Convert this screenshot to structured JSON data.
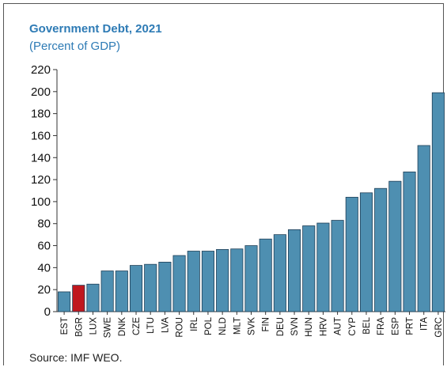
{
  "chart_data": {
    "type": "bar",
    "title": "Government Debt, 2021",
    "subtitle": "(Percent of GDP)",
    "source": "Source: IMF WEO.",
    "categories": [
      "EST",
      "BGR",
      "LUX",
      "SWE",
      "DNK",
      "CZE",
      "LTU",
      "LVA",
      "ROU",
      "IRL",
      "POL",
      "NLD",
      "MLT",
      "SVK",
      "FIN",
      "DEU",
      "SVN",
      "HUN",
      "HRV",
      "AUT",
      "CYP",
      "BEL",
      "FRA",
      "ESP",
      "PRT",
      "ITA",
      "GRC"
    ],
    "values": [
      18,
      24,
      25,
      37,
      37,
      42,
      43,
      45,
      51,
      55,
      55,
      56.5,
      57,
      60,
      66,
      70,
      74.5,
      78,
      80.5,
      83,
      104,
      108,
      112,
      118.5,
      127,
      151,
      199
    ],
    "highlight": "BGR",
    "colors": {
      "bar": "#4e8fb1",
      "highlight": "#c0171e",
      "bar_edge": "#1f3f57",
      "title": "#2e7bb5"
    },
    "ylim": [
      0,
      220
    ],
    "yticks": [
      0,
      20,
      40,
      60,
      80,
      100,
      120,
      140,
      160,
      180,
      200,
      220
    ],
    "grid": false,
    "legend": "none"
  }
}
